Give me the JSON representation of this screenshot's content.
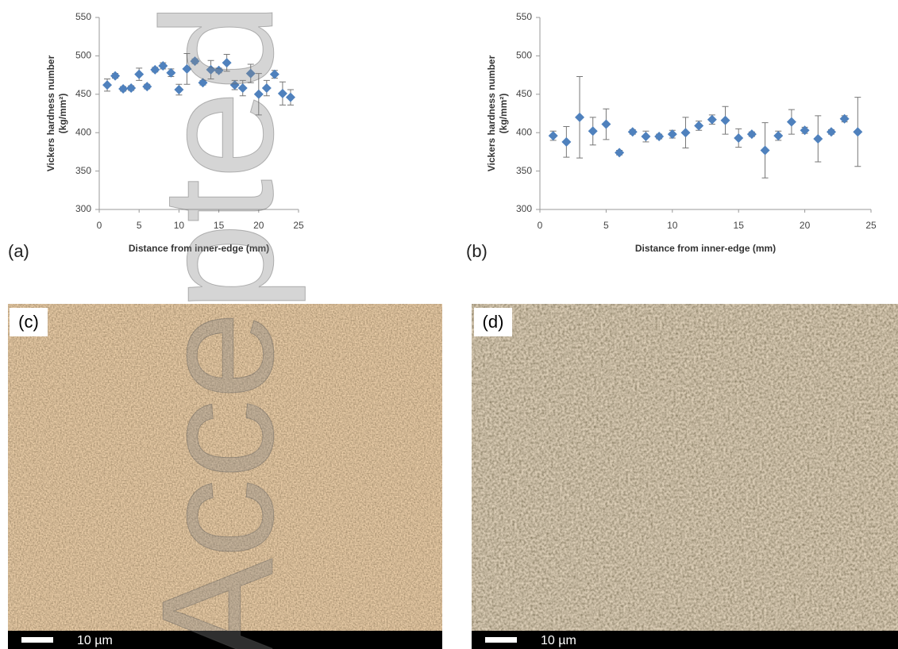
{
  "chart_data": [
    {
      "type": "scatter",
      "panel_label": "(a)",
      "x_label": "Distance from inner-edge (mm)",
      "y_label": [
        "Vickers hardness number",
        "(kg/mm²)"
      ],
      "x": [
        1,
        2,
        3,
        4,
        5,
        6,
        7,
        8,
        9,
        10,
        11,
        12,
        13,
        14,
        15,
        16,
        17,
        18,
        19,
        20,
        21,
        22,
        23,
        24
      ],
      "series": [
        {
          "color": "#4f81bd",
          "values": [
            462,
            474,
            457,
            458,
            476,
            460,
            482,
            487,
            478,
            456,
            483,
            493,
            465,
            482,
            481,
            491,
            462,
            458,
            477,
            450,
            458,
            476,
            451,
            446
          ],
          "errors": [
            8,
            3,
            3,
            3,
            8,
            3,
            3,
            4,
            5,
            7,
            20,
            3,
            3,
            12,
            3,
            11,
            6,
            10,
            12,
            27,
            10,
            5,
            15,
            10
          ]
        }
      ],
      "xlim": [
        0,
        25
      ],
      "xticks": [
        0,
        5,
        10,
        15,
        20,
        25
      ],
      "ylim": [
        300,
        550
      ],
      "yticks": [
        300,
        350,
        400,
        450,
        500,
        550
      ]
    },
    {
      "type": "scatter",
      "panel_label": "(b)",
      "x_label": "Distance from inner-edge (mm)",
      "y_label": [
        "Vickers hardness number",
        "(kg/mm²)"
      ],
      "x": [
        1,
        2,
        3,
        4,
        5,
        6,
        7,
        8,
        9,
        10,
        11,
        12,
        13,
        14,
        15,
        16,
        17,
        18,
        19,
        20,
        21,
        22,
        23,
        24
      ],
      "series": [
        {
          "color": "#4f81bd",
          "values": [
            396,
            388,
            420,
            402,
            411,
            374,
            401,
            395,
            395,
            398,
            400,
            409,
            417,
            416,
            393,
            398,
            377,
            396,
            414,
            403,
            392,
            401,
            418,
            401
          ],
          "errors": [
            6,
            20,
            53,
            18,
            20,
            3,
            3,
            7,
            3,
            5,
            20,
            6,
            6,
            18,
            12,
            3,
            36,
            6,
            16,
            4,
            30,
            3,
            4,
            45
          ]
        }
      ],
      "xlim": [
        0,
        25
      ],
      "xticks": [
        0,
        5,
        10,
        15,
        20,
        25
      ],
      "ylim": [
        300,
        550
      ],
      "yticks": [
        300,
        350,
        400,
        450,
        500,
        550
      ]
    }
  ],
  "micrographs": [
    {
      "label": "(c)",
      "scale_bar": "10 µm"
    },
    {
      "label": "(d)",
      "scale_bar": "10 µm"
    }
  ],
  "watermark": "Accepted"
}
